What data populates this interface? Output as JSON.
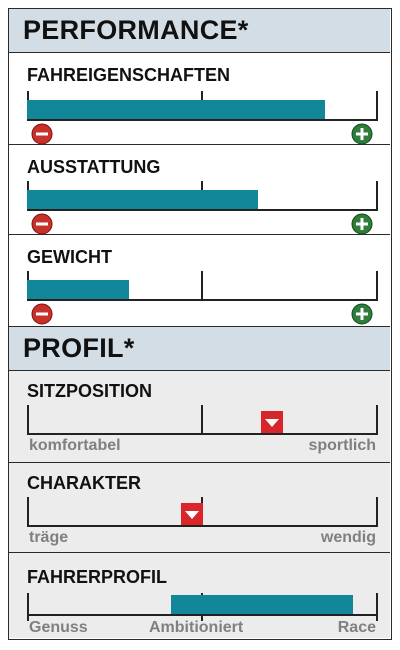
{
  "performance": {
    "title": "PERFORMANCE*",
    "rows": [
      {
        "label": "FAHREIGENSCHAFTEN",
        "value_fraction": 0.85,
        "min_icon": "minus-circle-icon",
        "max_icon": "plus-circle-icon"
      },
      {
        "label": "AUSSTATTUNG",
        "value_fraction": 0.66,
        "min_icon": "minus-circle-icon",
        "max_icon": "plus-circle-icon"
      },
      {
        "label": "GEWICHT",
        "value_fraction": 0.29,
        "min_icon": "minus-circle-icon",
        "max_icon": "plus-circle-icon"
      }
    ]
  },
  "profil": {
    "title": "PROFIL*",
    "sitzposition": {
      "label": "SITZPOSITION",
      "left_label": "komfortabel",
      "right_label": "sportlich",
      "marker_fraction": 0.7
    },
    "charakter": {
      "label": "CHARAKTER",
      "left_label": "träge",
      "right_label": "wendig",
      "marker_fraction": 0.47
    },
    "fahrerprofil": {
      "label": "FAHRERPROFIL",
      "label_genuss": "Genuss",
      "label_ambitioniert": "Ambitioniert",
      "label_race": "Race",
      "range_start": 0.41,
      "range_end": 0.93
    }
  },
  "colors": {
    "bar": "#12879a",
    "header_bg": "#d3dde5",
    "profile_bg": "#ececec",
    "minus": "#c8302a",
    "plus": "#2e7d3a",
    "marker": "#d8262b"
  }
}
